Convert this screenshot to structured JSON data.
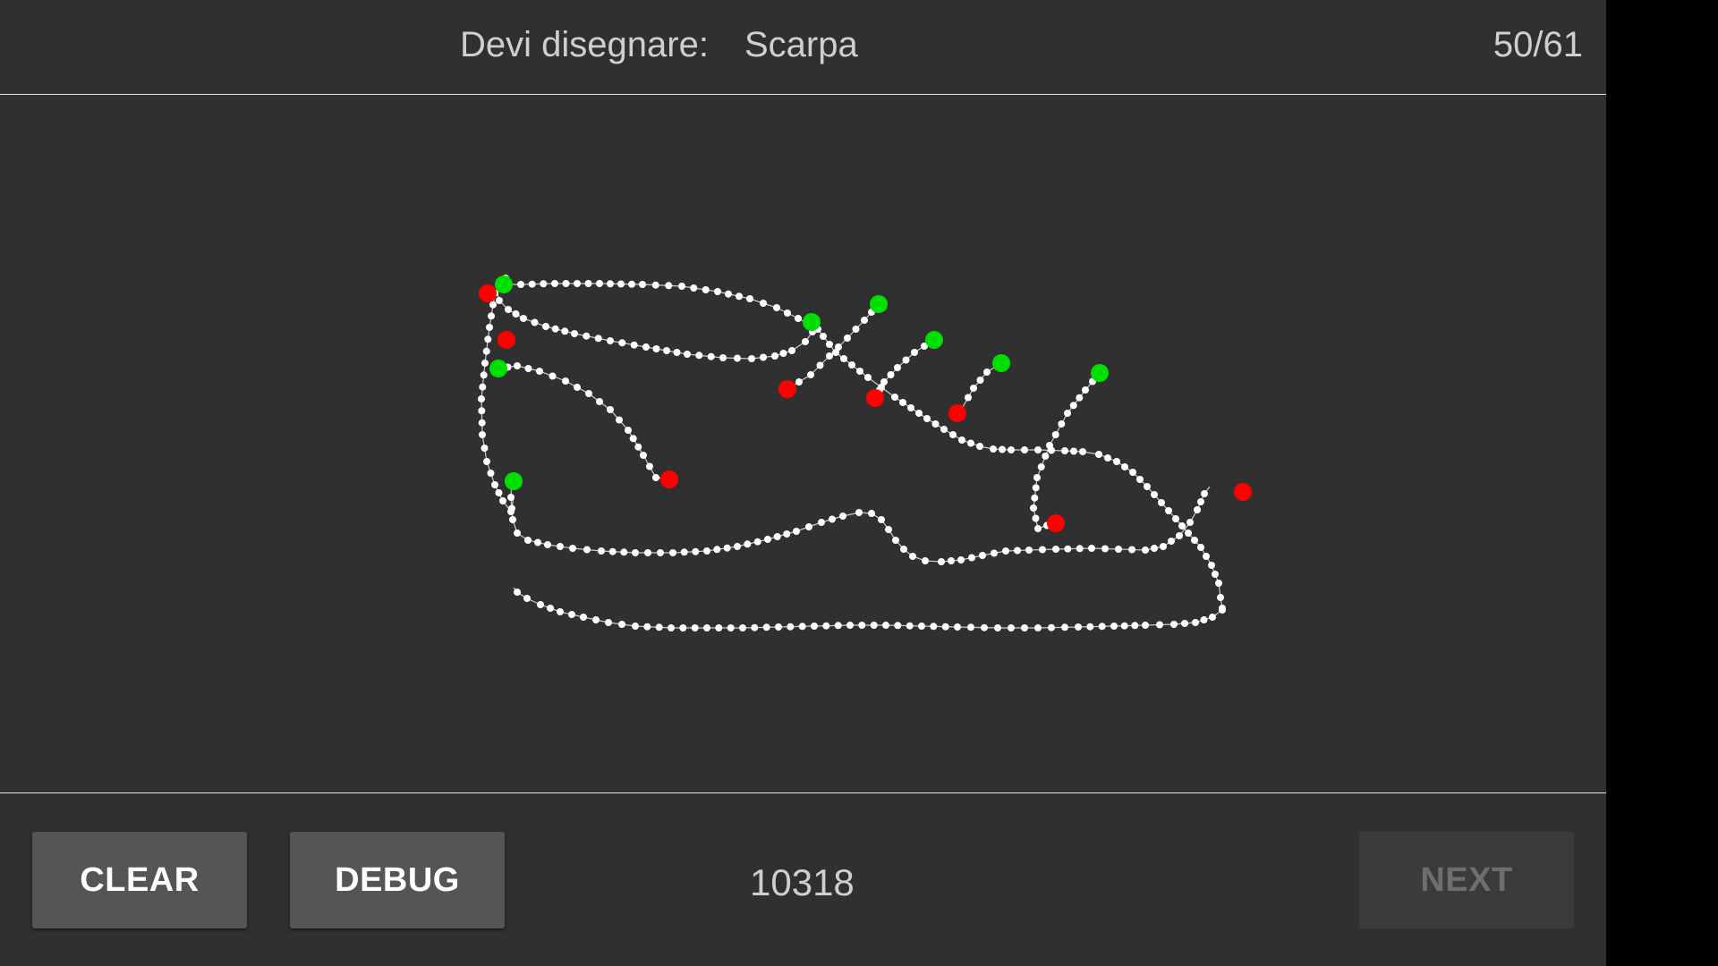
{
  "header": {
    "prompt_label": "Devi disegnare:",
    "prompt_word": "Scarpa",
    "progress": "50/61"
  },
  "footer": {
    "clear_label": "CLEAR",
    "debug_label": "DEBUG",
    "score": "10318",
    "next_label": "NEXT",
    "next_enabled": false
  },
  "colors": {
    "background": "#303030",
    "stroke": "#ffffff",
    "stroke_start": "#00e000",
    "stroke_end": "#ff0000"
  }
}
